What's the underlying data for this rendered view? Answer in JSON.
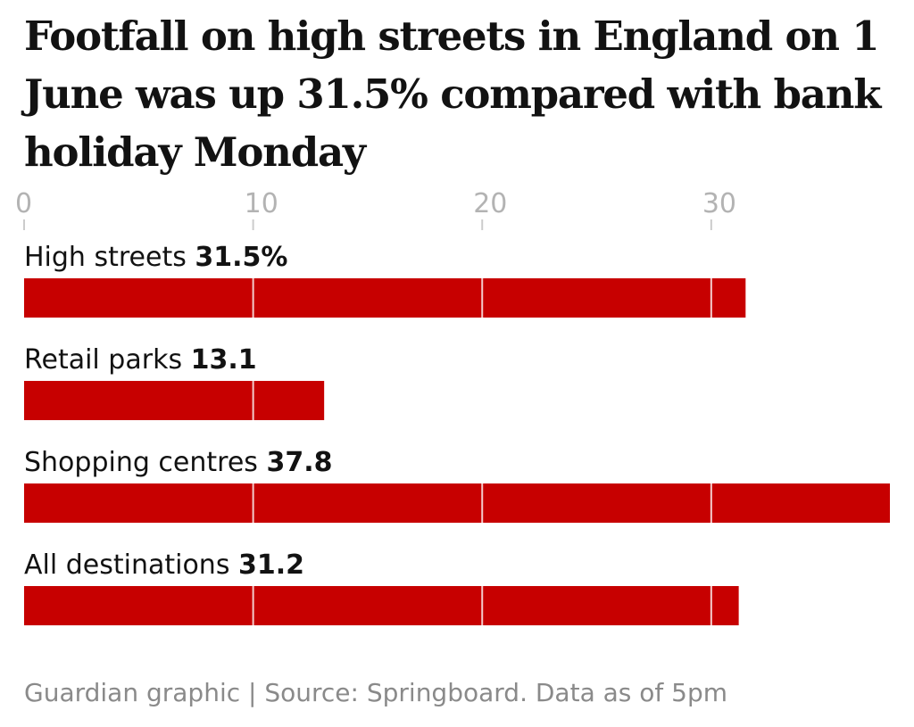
{
  "chart_data": {
    "type": "bar",
    "orientation": "horizontal",
    "title": "Footfall on high streets in England on 1 June was up 31.5% compared with bank holiday Monday",
    "categories": [
      "High streets",
      "Retail parks",
      "Shopping centres",
      "All destinations"
    ],
    "values": [
      31.5,
      13.1,
      37.8,
      31.2
    ],
    "value_labels": [
      "31.5%",
      "13.1",
      "37.8",
      "31.2"
    ],
    "xticks": [
      0,
      10,
      20,
      30
    ],
    "xlim": [
      0,
      37.8
    ],
    "grid": true,
    "bar_color": "#c70000",
    "footer": "Guardian graphic | Source: Springboard. Data as of 5pm"
  }
}
